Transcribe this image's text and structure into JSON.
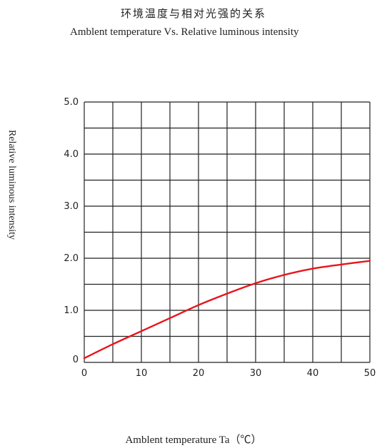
{
  "chart_data": {
    "type": "line",
    "title": "环境温度与相对光强的关系",
    "subtitle": "Amblent temperature  Vs.  Relative luminous intensity",
    "xlabel": "Amblent temperature Ta（℃）",
    "ylabel": "Relative luminous intensity",
    "xlim": [
      0,
      50
    ],
    "ylim": [
      0,
      5.0
    ],
    "x_ticks": [
      "0",
      "10",
      "20",
      "30",
      "40",
      "50"
    ],
    "y_ticks": [
      "0",
      "1.0",
      "2.0",
      "3.0",
      "4.0",
      "5.0"
    ],
    "grid": true,
    "series": [
      {
        "color": "#e8141b",
        "x": [
          0,
          5,
          10,
          15,
          20,
          25,
          30,
          35,
          40,
          45,
          50
        ],
        "y": [
          0.08,
          0.35,
          0.6,
          0.85,
          1.1,
          1.32,
          1.52,
          1.68,
          1.8,
          1.88,
          1.95
        ]
      }
    ]
  }
}
